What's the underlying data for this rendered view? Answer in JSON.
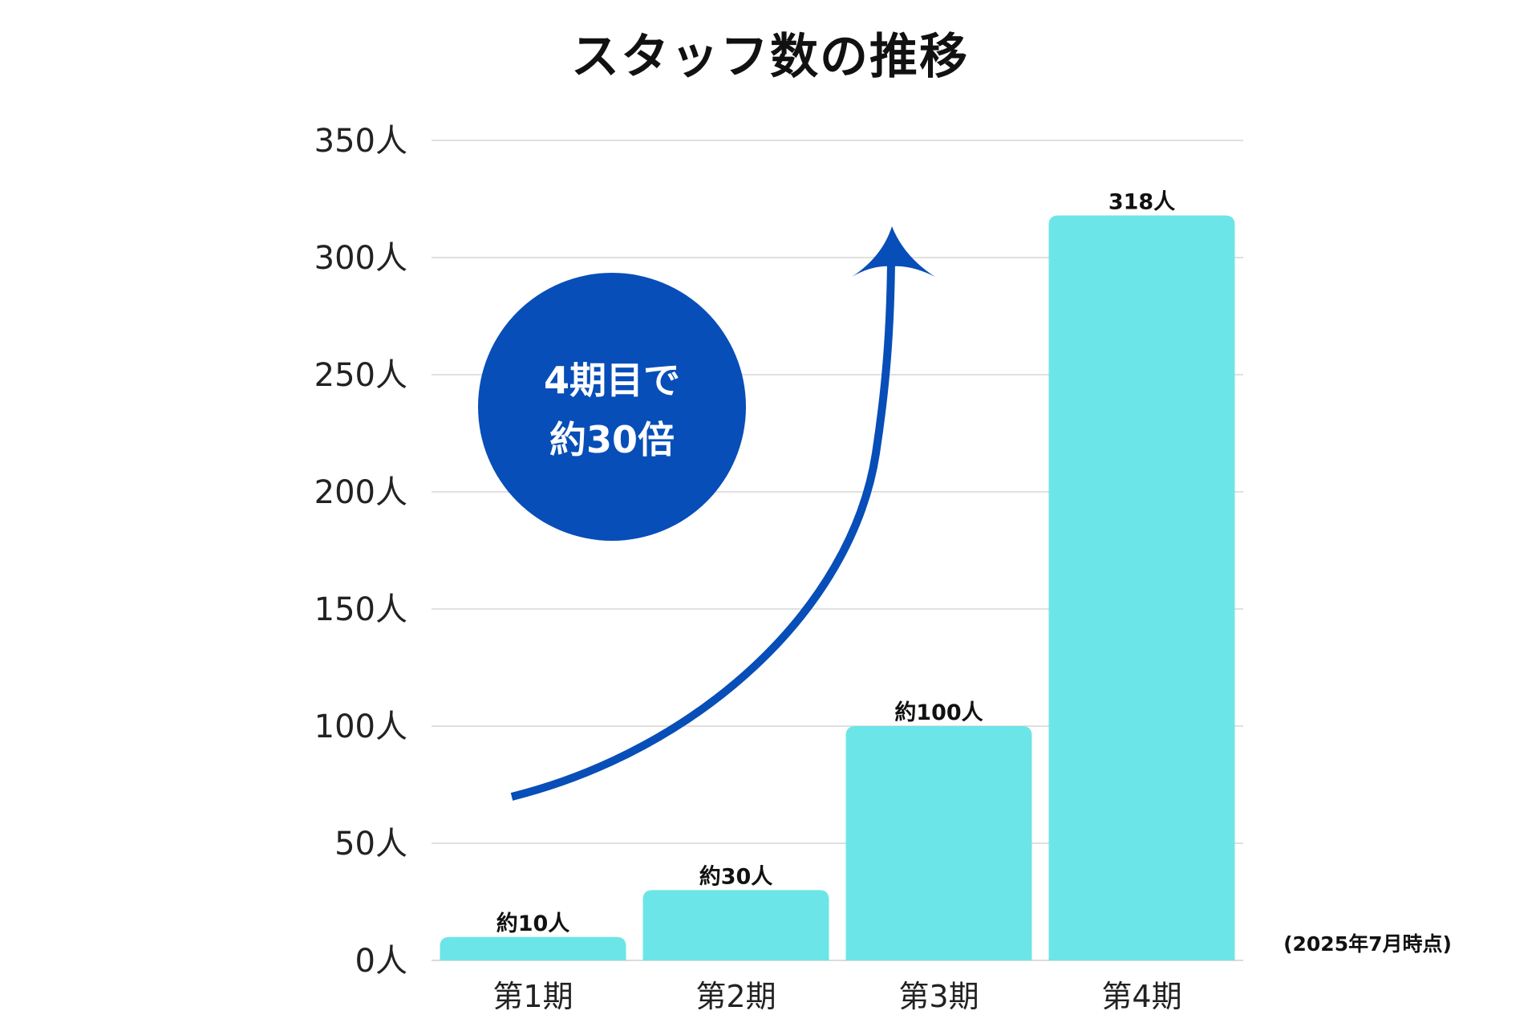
{
  "chart_data": {
    "type": "bar",
    "title": "スタッフ数の推移",
    "categories": [
      "第1期",
      "第2期",
      "第3期",
      "第4期"
    ],
    "values": [
      10,
      30,
      100,
      318
    ],
    "data_labels": [
      "約10人",
      "約30人",
      "約100人",
      "318人"
    ],
    "ylim": [
      0,
      350
    ],
    "yticks": [
      0,
      50,
      100,
      150,
      200,
      250,
      300,
      350
    ],
    "ytick_labels": [
      "0人",
      "50人",
      "100人",
      "150人",
      "200人",
      "250人",
      "300人",
      "350人"
    ],
    "xlabel": "",
    "ylabel": "",
    "grid": true,
    "legend": "none",
    "bar_color": "#6CE5E8",
    "annotation": {
      "lines": [
        "4期目で",
        "約30倍"
      ],
      "circle_color": "#074EB8",
      "arrow_color": "#074EB8"
    },
    "note": "(2025年7月時点)"
  }
}
